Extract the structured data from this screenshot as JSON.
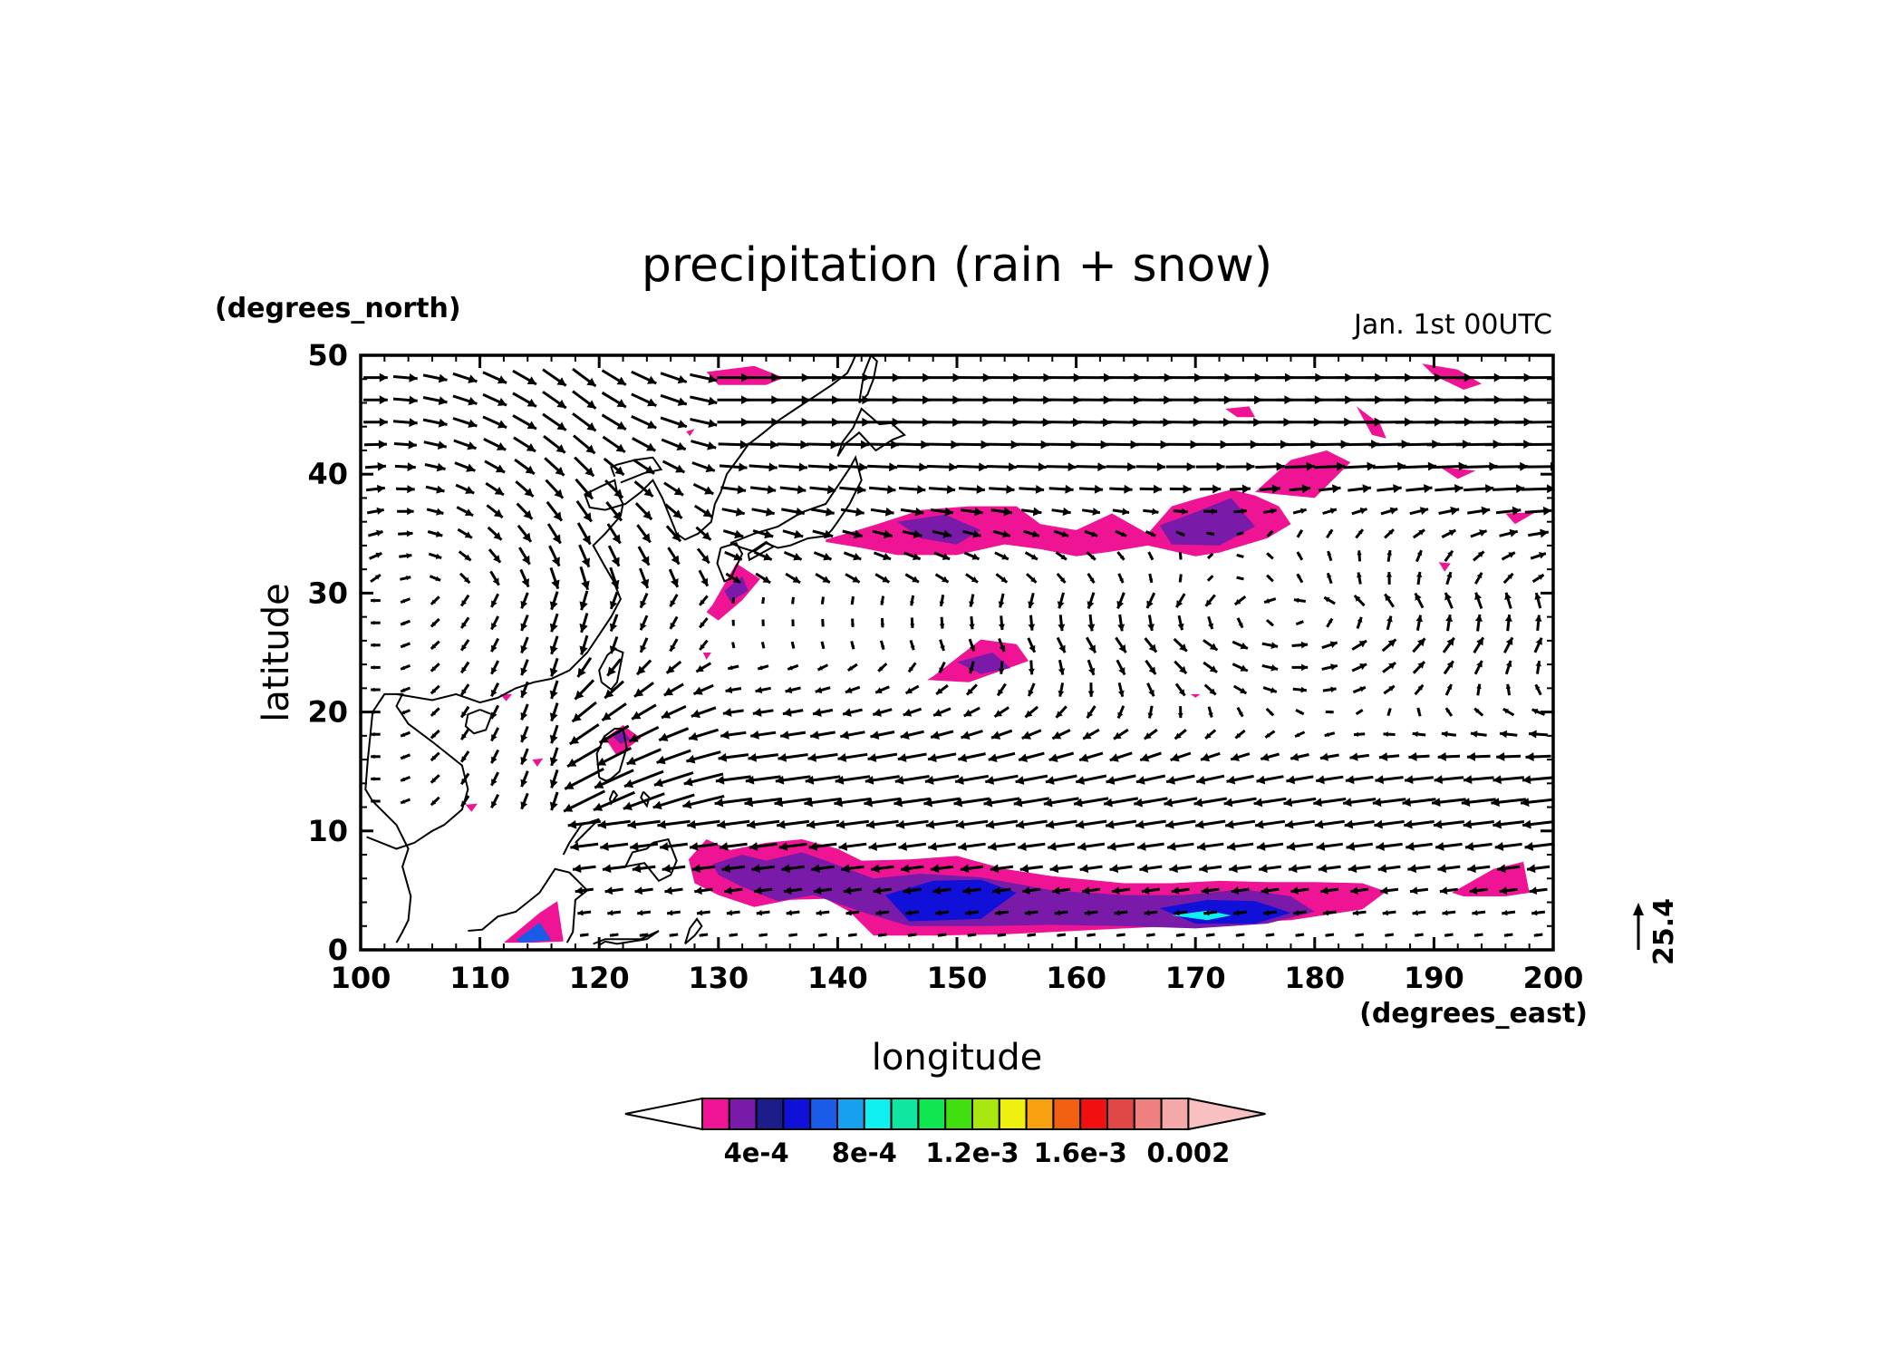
{
  "chart_data": {
    "type": "map",
    "title": "precipitation (rain + snow)",
    "time_label": "Jan. 1st 00UTC",
    "xlabel": "longitude",
    "ylabel": "latitude",
    "x_unit": "(degrees_east)",
    "y_unit": "(degrees_north)",
    "xlim": [
      100,
      200
    ],
    "ylim": [
      0,
      50
    ],
    "x_ticks": [
      100,
      110,
      120,
      130,
      140,
      150,
      160,
      170,
      180,
      190,
      200
    ],
    "y_ticks": [
      0,
      10,
      20,
      30,
      40,
      50
    ],
    "vector_reference": "25.4",
    "colorbar": {
      "colors": [
        "#ffffff",
        "#ee1493",
        "#7a1aa8",
        "#1c1c8a",
        "#1010d8",
        "#1a5ce8",
        "#18a0f0",
        "#10f0f0",
        "#10e6a0",
        "#10e650",
        "#40e010",
        "#a8e810",
        "#f0f010",
        "#f8a010",
        "#f06010",
        "#f01010",
        "#e04848",
        "#f08080",
        "#f4a8a8",
        "#f8c0c0"
      ],
      "tick_labels": [
        "4e-4",
        "8e-4",
        "1.2e-3",
        "1.6e-3",
        "0.002"
      ]
    },
    "precip_regions": [
      {
        "lon": [
          127.5,
          129,
          131,
          134,
          137,
          140,
          142,
          146,
          150,
          154,
          158,
          164,
          168,
          172,
          176,
          180,
          184,
          186,
          184,
          178,
          172,
          166,
          160,
          154,
          148,
          143,
          141,
          139,
          136,
          133,
          130,
          128
        ],
        "lat": [
          7.6,
          9.3,
          8.4,
          9.0,
          9.3,
          8.5,
          7.5,
          7.6,
          7.9,
          6.8,
          6.2,
          5.6,
          5.6,
          5.8,
          5.7,
          5.7,
          5.6,
          4.9,
          3.4,
          2.5,
          2.2,
          1.9,
          1.6,
          1.3,
          1.2,
          1.2,
          3.2,
          4.3,
          4.2,
          3.6,
          4.6,
          5.6
        ],
        "level": 1
      },
      {
        "lon": [
          129.5,
          132,
          134,
          137,
          139,
          143,
          147,
          152,
          158,
          164,
          169,
          174,
          178,
          180,
          176,
          170,
          164,
          158,
          152,
          146,
          142,
          138,
          135,
          132,
          130
        ],
        "lat": [
          7.2,
          8.0,
          7.5,
          8.2,
          7.5,
          6.0,
          6.4,
          6.1,
          5.0,
          4.6,
          4.6,
          5.1,
          4.5,
          3.2,
          2.2,
          1.8,
          2.0,
          2.1,
          2.0,
          2.0,
          3.2,
          4.6,
          4.1,
          5.3,
          6.3
        ],
        "level": 2
      },
      {
        "lon": [
          144,
          148,
          152,
          155,
          152,
          146
        ],
        "lat": [
          4.6,
          5.8,
          5.9,
          4.8,
          2.6,
          2.4
        ],
        "level": 4
      },
      {
        "lon": [
          167,
          171,
          175,
          178,
          175,
          170
        ],
        "lat": [
          3.5,
          4.2,
          4.1,
          3.1,
          2.2,
          2.2
        ],
        "level": 4
      },
      {
        "lon": [
          168,
          171,
          173,
          171
        ],
        "lat": [
          2.9,
          3.3,
          2.9,
          2.5
        ],
        "level": 7
      },
      {
        "lon": [
          112,
          115,
          116.5,
          117,
          114.5,
          111.5
        ],
        "lat": [
          0.6,
          3.1,
          4.1,
          0.7,
          0.6,
          0.6
        ],
        "level": 1
      },
      {
        "lon": [
          113,
          115,
          116,
          113.5
        ],
        "lat": [
          0.8,
          2.3,
          0.8,
          0.6
        ],
        "level": 5
      },
      {
        "lon": [
          191.5,
          195,
          197.5,
          198,
          196,
          192.5
        ],
        "lat": [
          4.8,
          6.8,
          7.4,
          4.8,
          4.5,
          4.5
        ],
        "level": 1
      },
      {
        "lon": [
          139,
          143,
          147,
          151,
          155,
          157,
          160,
          163,
          166,
          168,
          170,
          173,
          175,
          177,
          178,
          176,
          172,
          170,
          166,
          163,
          160,
          157,
          154,
          150,
          145,
          142,
          139
        ],
        "lat": [
          34.5,
          35.7,
          37.0,
          37.3,
          37.3,
          35.8,
          35.3,
          36.7,
          35.0,
          37.3,
          37.9,
          38.7,
          38.2,
          37.3,
          35.8,
          34.6,
          33.4,
          33.1,
          34.0,
          33.5,
          33.1,
          33.7,
          34.1,
          33.2,
          33.2,
          33.8,
          34.3
        ],
        "level": 1
      },
      {
        "lon": [
          145,
          149,
          152,
          150,
          147
        ],
        "lat": [
          36.0,
          36.6,
          35.3,
          34.1,
          34.6
        ],
        "level": 2
      },
      {
        "lon": [
          167,
          170,
          173,
          175,
          172,
          168
        ],
        "lat": [
          35.7,
          36.8,
          38.0,
          35.6,
          34.0,
          34.1
        ],
        "level": 2
      },
      {
        "lon": [
          175,
          178,
          181,
          183,
          180
        ],
        "lat": [
          38.5,
          41.2,
          42.0,
          41.0,
          38.0
        ],
        "level": 1
      },
      {
        "lon": [
          148,
          152,
          155,
          156,
          151,
          147.5
        ],
        "lat": [
          23.0,
          26.1,
          25.7,
          24.3,
          22.5,
          22.7
        ],
        "level": 1
      },
      {
        "lon": [
          150,
          153,
          154.5,
          152
        ],
        "lat": [
          24.2,
          25.0,
          23.7,
          23.2
        ],
        "level": 2
      },
      {
        "lon": [
          129.5,
          131.5,
          133.5,
          132,
          130,
          129
        ],
        "lat": [
          29.0,
          32.5,
          31.2,
          29.4,
          27.7,
          28.4
        ],
        "level": 1
      },
      {
        "lon": [
          130.5,
          132,
          132.5,
          131
        ],
        "lat": [
          30.2,
          31.4,
          30.2,
          29.3
        ],
        "level": 2
      },
      {
        "lon": [
          129,
          133,
          135.5,
          134,
          130
        ],
        "lat": [
          48.6,
          49.1,
          48.1,
          47.5,
          47.5
        ],
        "level": 1
      },
      {
        "lon": [
          189,
          192,
          194,
          192.5,
          190
        ],
        "lat": [
          49.3,
          48.8,
          47.6,
          47.1,
          48.3
        ],
        "level": 1
      },
      {
        "lon": [
          183.5,
          185.5,
          186,
          184.8
        ],
        "lat": [
          45.7,
          44.2,
          43.0,
          43.3
        ],
        "level": 1
      },
      {
        "lon": [
          172.5,
          174.5,
          175,
          173.5
        ],
        "lat": [
          45.5,
          45.7,
          44.8,
          44.8
        ],
        "level": 1
      },
      {
        "lon": [
          190.5,
          193.5,
          192
        ],
        "lat": [
          40.6,
          40.3,
          39.6
        ],
        "level": 1
      },
      {
        "lon": [
          196,
          198.5,
          196.8
        ],
        "lat": [
          36.7,
          36.8,
          35.8
        ],
        "level": 1
      },
      {
        "lon": [
          120.5,
          122,
          123.5,
          121.5
        ],
        "lat": [
          17.8,
          18.9,
          17.8,
          16.3
        ],
        "level": 1
      },
      {
        "lon": [
          121.2,
          122,
          122.6,
          121.8
        ],
        "lat": [
          17.9,
          18.5,
          17.7,
          17.3
        ],
        "level": 2
      },
      {
        "lon": [
          108.8,
          109.8,
          109.3
        ],
        "lat": [
          12.2,
          12.3,
          11.6
        ],
        "level": 1
      },
      {
        "lon": [
          111.7,
          112.7,
          112.2
        ],
        "lat": [
          21.5,
          21.5,
          20.9
        ],
        "level": 1
      },
      {
        "lon": [
          114.4,
          115.3,
          114.8
        ],
        "lat": [
          16.0,
          16.1,
          15.4
        ],
        "level": 1
      },
      {
        "lon": [
          128.7,
          129.4,
          129.0
        ],
        "lat": [
          25.0,
          25.0,
          24.4
        ],
        "level": 1
      },
      {
        "lon": [
          190.4,
          191.4,
          190.9
        ],
        "lat": [
          32.6,
          32.5,
          31.8
        ],
        "level": 1
      },
      {
        "lon": [
          127.3,
          128.0,
          127.6
        ],
        "lat": [
          43.6,
          43.8,
          43.2
        ],
        "level": 1
      },
      {
        "lon": [
          169.6,
          170.4,
          170.0
        ],
        "lat": [
          21.5,
          21.5,
          21.2
        ],
        "level": 1
      }
    ],
    "coastlines": [
      {
        "lon": [
          100.5,
          103,
          104.5,
          106,
          107,
          108.5,
          109,
          108.5,
          106,
          104,
          103,
          103.5,
          102,
          101,
          100.6,
          100.4,
          101,
          103,
          104,
          103.5,
          104.2,
          104,
          103.5,
          103
        ],
        "lat": [
          9.5,
          8.5,
          9.0,
          10.0,
          10.5,
          11.8,
          13.5,
          15.5,
          17.5,
          19.0,
          20.5,
          21.5,
          21.5,
          20.0,
          16.0,
          13.5,
          12.5,
          10.5,
          8.5,
          7.0,
          4.5,
          2.5,
          1.5,
          0.6
        ]
      },
      {
        "lon": [
          103,
          106,
          108,
          110,
          111.5,
          113,
          114.5,
          116,
          117.5,
          119,
          120,
          121,
          121.8,
          121.2,
          120.5,
          119.5,
          120.5,
          121.8,
          122,
          121.5,
          121.3,
          120.2,
          118.8,
          119.2,
          120.5,
          122.2,
          123.5,
          124.5,
          125.3,
          125.9,
          126.5,
          127.2,
          128.3,
          129.4,
          129.7,
          130.2,
          130.7,
          131.8,
          132.5,
          133.8,
          135,
          136.5,
          138,
          139.5,
          140.8,
          141.2,
          141.5
        ],
        "lat": [
          21.5,
          21.0,
          21.5,
          20.8,
          21.2,
          22.0,
          22.5,
          22.8,
          23.5,
          25.0,
          26.5,
          28.0,
          29.5,
          31.0,
          32.2,
          34.0,
          35.0,
          36.5,
          37.5,
          38.5,
          39.5,
          39.0,
          38.3,
          37.2,
          37.0,
          37.5,
          38.5,
          39.5,
          38.0,
          36.5,
          35.0,
          34.5,
          35.0,
          36.0,
          37.5,
          38.5,
          40.0,
          41.5,
          42.5,
          43.5,
          44.5,
          45.5,
          46.5,
          47.5,
          48.5,
          49.3,
          50.0
        ]
      },
      {
        "lon": [
          121.8,
          123.8,
          125.2,
          124.5,
          123.0,
          121.5,
          121.0,
          121.3
        ],
        "lat": [
          39.3,
          40.1,
          40.4,
          41.4,
          41.2,
          40.8,
          40.6,
          39.8
        ]
      },
      {
        "lon": [
          110.0,
          111.0,
          110.5,
          109.5,
          108.8,
          109.0,
          110.0
        ],
        "lat": [
          20.2,
          19.8,
          18.5,
          18.2,
          18.8,
          19.8,
          20.2
        ]
      },
      {
        "lon": [
          120.2,
          121.0,
          121.5,
          122.0,
          121.3,
          120.7,
          120.0,
          120.2
        ],
        "lat": [
          22.5,
          21.9,
          22.5,
          25.0,
          25.3,
          24.8,
          23.5,
          22.5
        ]
      },
      {
        "lon": [
          120.0,
          120.6,
          121.0,
          121.7,
          122.3,
          122.0,
          121.3,
          120.5,
          119.8,
          120.0
        ],
        "lat": [
          14.5,
          14.2,
          14.4,
          15.0,
          17.0,
          18.6,
          18.6,
          18.0,
          16.5,
          14.5
        ]
      },
      {
        "lon": [
          123.7,
          124.2,
          124.0,
          123.5,
          123.7
        ],
        "lat": [
          13.3,
          12.8,
          12.1,
          12.8,
          13.3
        ]
      },
      {
        "lon": [
          121.2,
          121.5,
          121.0,
          120.9,
          121.2
        ],
        "lat": [
          13.4,
          13.0,
          12.3,
          12.7,
          13.4
        ]
      },
      {
        "lon": [
          124.5,
          125.8,
          126.5,
          126.0,
          125.0,
          123.8,
          122.2,
          122.8,
          124.0,
          124.5
        ],
        "lat": [
          9.0,
          9.3,
          7.5,
          6.3,
          5.8,
          7.3,
          7.0,
          8.2,
          8.5,
          9.0
        ]
      },
      {
        "lon": [
          118.0,
          119.5,
          120.0,
          118.5,
          117.5,
          117.0
        ],
        "lat": [
          9.0,
          10.5,
          11.0,
          10.5,
          9.0,
          8.0
        ]
      },
      {
        "lon": [
          109.0,
          110.2,
          111.5,
          113.0,
          115.0,
          116.3,
          117.5,
          118.5,
          119.0,
          118.0,
          117.8,
          117.3
        ],
        "lat": [
          1.6,
          1.7,
          2.8,
          3.2,
          4.8,
          6.8,
          6.5,
          5.5,
          5.0,
          4.2,
          1.5,
          0.6
        ]
      },
      {
        "lon": [
          119.5,
          120.5,
          123.5,
          125.0,
          124.0,
          121.5,
          120.5,
          120.0
        ],
        "lat": [
          0.5,
          0.9,
          0.9,
          1.6,
          0.9,
          0.5,
          0.7,
          0.4
        ]
      },
      {
        "lon": [
          127.2,
          128.0,
          128.6,
          128.2,
          127.6,
          127.2
        ],
        "lat": [
          0.5,
          1.2,
          2.0,
          2.6,
          1.8,
          0.5
        ]
      },
      {
        "lon": [
          130.2,
          131.5,
          132.0,
          131.0,
          130.5,
          129.9,
          130.2
        ],
        "lat": [
          33.8,
          34.2,
          33.3,
          31.2,
          31.0,
          32.5,
          33.8
        ]
      },
      {
        "lon": [
          131.0,
          133.0,
          135.0,
          137.0,
          139.0,
          140.0,
          141.0,
          141.5,
          142.0,
          141.0,
          140.0,
          139.5,
          139.0,
          137.5,
          136.0,
          135.0,
          134.0,
          133.0,
          132.0,
          131.0
        ],
        "lat": [
          34.2,
          35.0,
          35.6,
          36.8,
          37.5,
          39.0,
          40.5,
          41.4,
          39.5,
          37.5,
          36.0,
          35.3,
          34.8,
          34.6,
          34.0,
          33.8,
          34.2,
          33.5,
          33.8,
          34.2
        ]
      },
      {
        "lon": [
          132.5,
          134.0,
          134.6,
          133.5,
          132.6,
          132.5
        ],
        "lat": [
          33.3,
          34.3,
          33.9,
          33.3,
          32.8,
          33.3
        ]
      },
      {
        "lon": [
          140.0,
          140.7,
          141.8,
          143.2,
          144.6,
          145.6,
          144.5,
          143.5,
          142.0,
          141.3,
          140.4,
          140.0
        ],
        "lat": [
          41.5,
          42.6,
          43.5,
          42.0,
          42.9,
          43.3,
          44.3,
          44.2,
          45.5,
          43.9,
          42.7,
          41.5
        ]
      },
      {
        "lon": [
          141.8,
          142.5,
          143.0,
          143.3,
          142.8,
          142.2,
          141.8
        ],
        "lat": [
          46.0,
          46.7,
          48.0,
          49.5,
          50.0,
          48.5,
          46.0
        ]
      }
    ]
  }
}
